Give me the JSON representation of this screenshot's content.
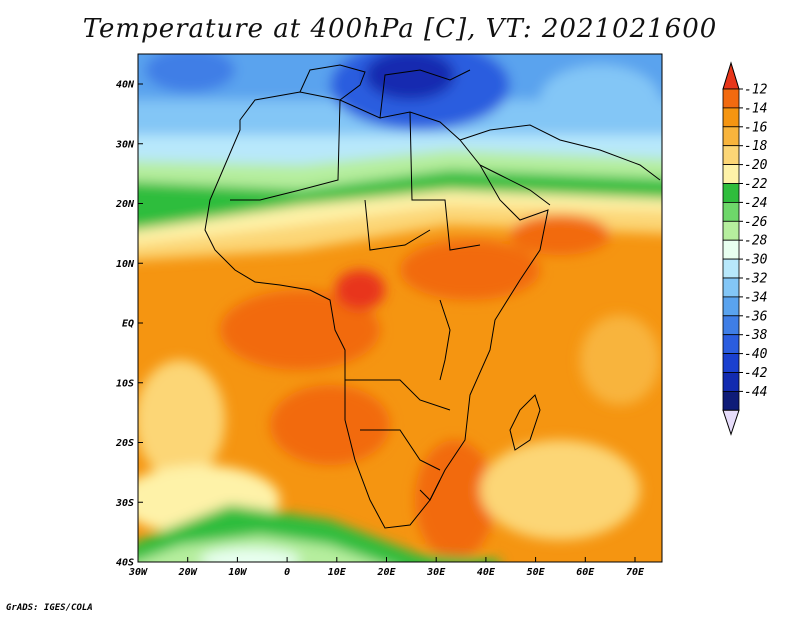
{
  "title": "Temperature at 400hPa [C], VT: 2021021600",
  "credit": "GrADS: IGES/COLA",
  "map": {
    "lat_labels": [
      "40N",
      "30N",
      "20N",
      "10N",
      "EQ",
      "10S",
      "20S",
      "30S",
      "40S"
    ],
    "lon_labels": [
      "30W",
      "20W",
      "10W",
      "0",
      "10E",
      "20E",
      "30E",
      "40E",
      "50E",
      "60E",
      "70E"
    ]
  },
  "colorbar": {
    "labels": [
      "-12",
      "-14",
      "-16",
      "-18",
      "-20",
      "-22",
      "-24",
      "-26",
      "-28",
      "-30",
      "-32",
      "-34",
      "-36",
      "-38",
      "-40",
      "-42",
      "-44"
    ],
    "colors": [
      "#e8361a",
      "#f26a0f",
      "#f59511",
      "#f8b43c",
      "#fcd676",
      "#fef2a8",
      "#2fbd3c",
      "#6ed76a",
      "#b6ee9e",
      "#e8fff0",
      "#b8e8fb",
      "#83c6f6",
      "#5aa3ee",
      "#3f7ee6",
      "#2b5ddf",
      "#1a40cf",
      "#122bb0",
      "#0f1c78",
      "#e6dcfa"
    ]
  }
}
